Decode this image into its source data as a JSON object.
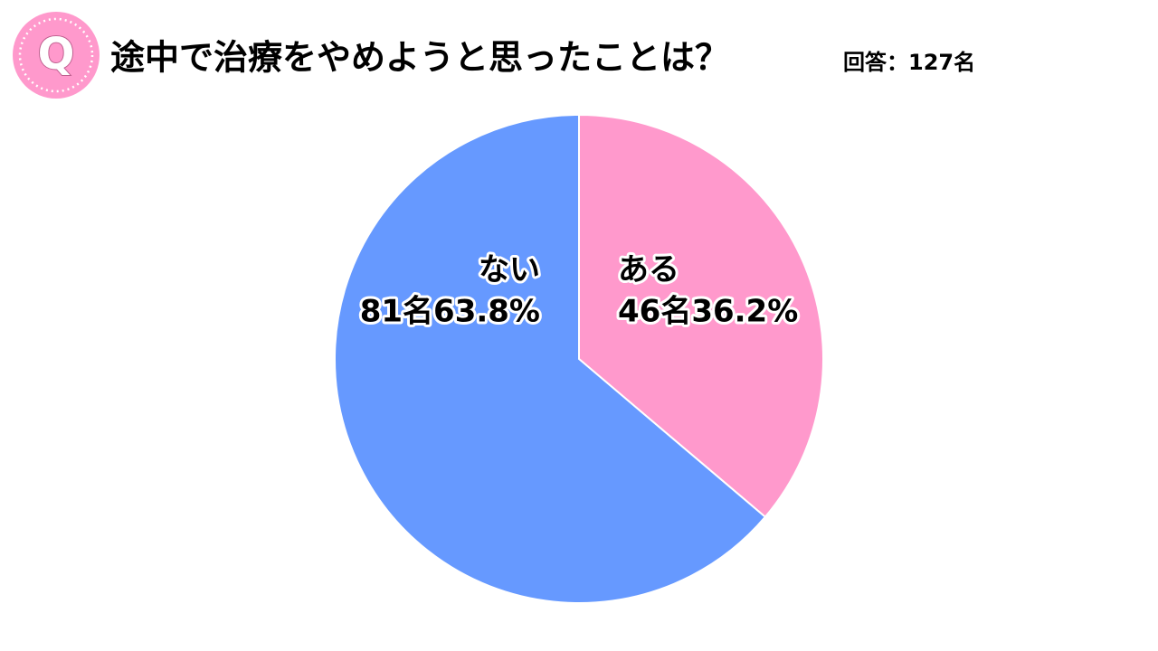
{
  "icon": "Q",
  "chart_data": {
    "type": "pie",
    "title": "途中で治療をやめようと思ったことは？",
    "subtitle": "回答：127名",
    "categories": [
      "ある",
      "ない"
    ],
    "values": [
      36.2,
      63.8
    ],
    "value_labels": [
      "46名36.2%",
      "81名63.8%"
    ],
    "colors": [
      "#ff99cc",
      "#6699ff"
    ]
  }
}
